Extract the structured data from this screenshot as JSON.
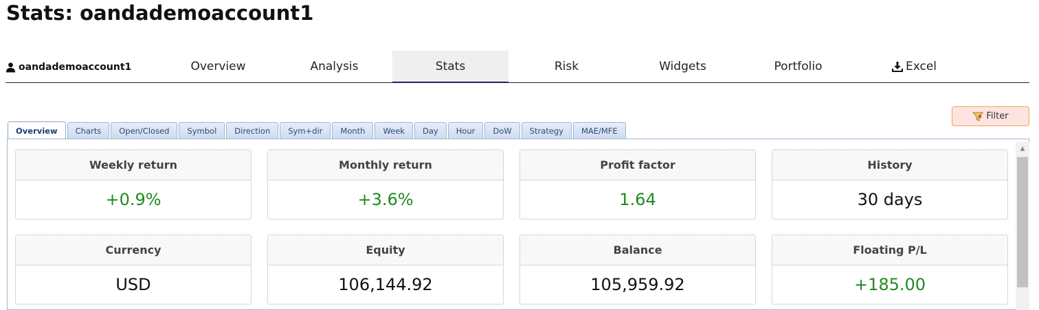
{
  "page": {
    "title": "Stats: oandademoaccount1"
  },
  "account": {
    "name": "oandademoaccount1",
    "icon": "user-icon"
  },
  "nav": {
    "tabs": [
      {
        "label": "Overview"
      },
      {
        "label": "Analysis"
      },
      {
        "label": "Stats",
        "active": true
      },
      {
        "label": "Risk"
      },
      {
        "label": "Widgets"
      },
      {
        "label": "Portfolio"
      },
      {
        "label": "Excel",
        "icon": "download-icon"
      }
    ]
  },
  "filter": {
    "label": "Filter",
    "icon": "filter-icon"
  },
  "subtabs": [
    {
      "label": "Overview",
      "active": true
    },
    {
      "label": "Charts"
    },
    {
      "label": "Open/Closed"
    },
    {
      "label": "Symbol"
    },
    {
      "label": "Direction"
    },
    {
      "label": "Sym+dir"
    },
    {
      "label": "Month"
    },
    {
      "label": "Week"
    },
    {
      "label": "Day"
    },
    {
      "label": "Hour"
    },
    {
      "label": "DoW"
    },
    {
      "label": "Strategy"
    },
    {
      "label": "MAE/MFE"
    }
  ],
  "cards": [
    {
      "title": "Weekly return",
      "value": "+0.9%",
      "positive": true
    },
    {
      "title": "Monthly return",
      "value": "+3.6%",
      "positive": true
    },
    {
      "title": "Profit factor",
      "value": "1.64",
      "positive": true
    },
    {
      "title": "History",
      "value": "30 days",
      "positive": false
    },
    {
      "title": "Currency",
      "value": "USD",
      "positive": false
    },
    {
      "title": "Equity",
      "value": "106,144.92",
      "positive": false
    },
    {
      "title": "Balance",
      "value": "105,959.92",
      "positive": false
    },
    {
      "title": "Floating P/L",
      "value": "+185.00",
      "positive": true
    }
  ],
  "colors": {
    "positive": "#1f8a1f",
    "active_underline": "#1d1f5e",
    "filter_bg": "#fde4e0",
    "filter_border": "#f0a64a"
  }
}
